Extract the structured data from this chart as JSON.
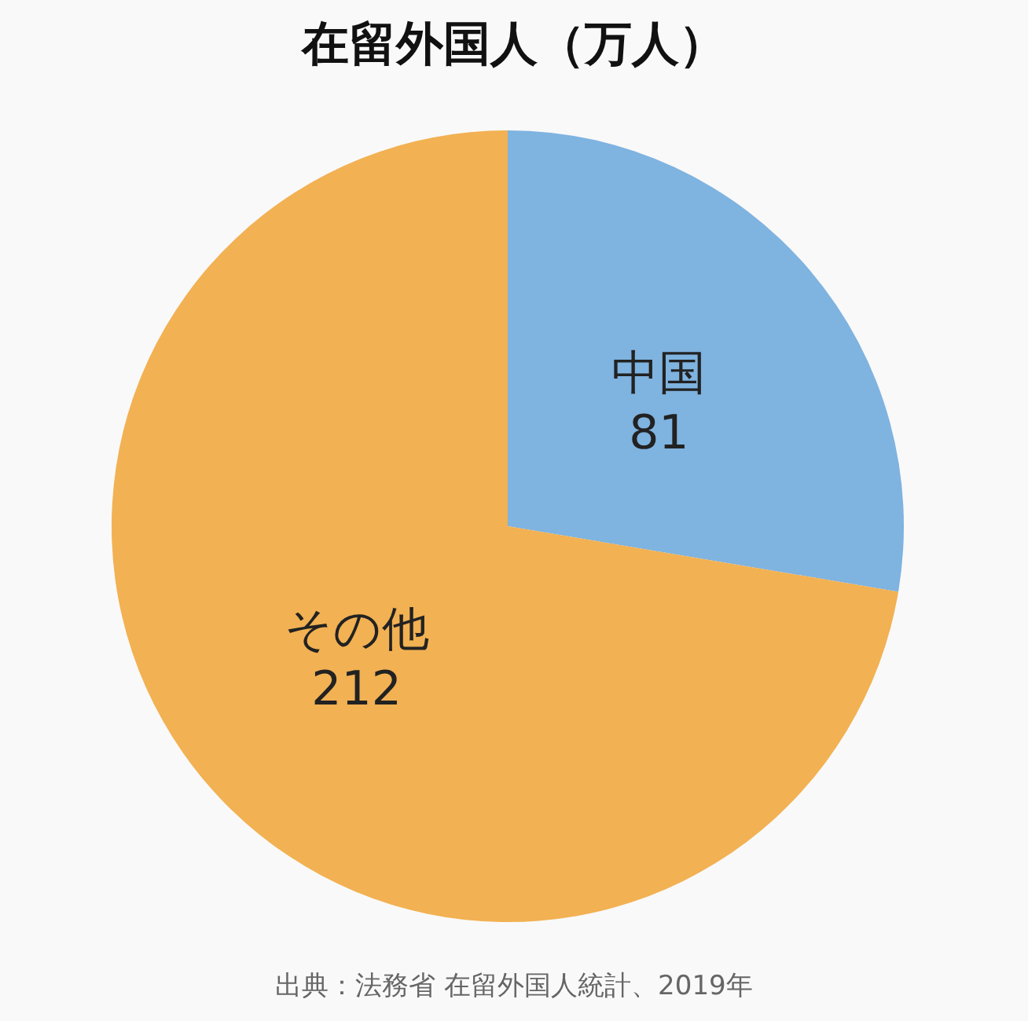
{
  "chart_data": {
    "type": "pie",
    "title": "在留外国人（万人）",
    "categories": [
      "中国",
      "その他"
    ],
    "values": [
      81,
      212
    ],
    "colors": [
      "#7fb3e0",
      "#f2b152"
    ],
    "data_labels": true,
    "annotations": [
      "出典：法務省 在留外国人統計、2019年"
    ]
  }
}
